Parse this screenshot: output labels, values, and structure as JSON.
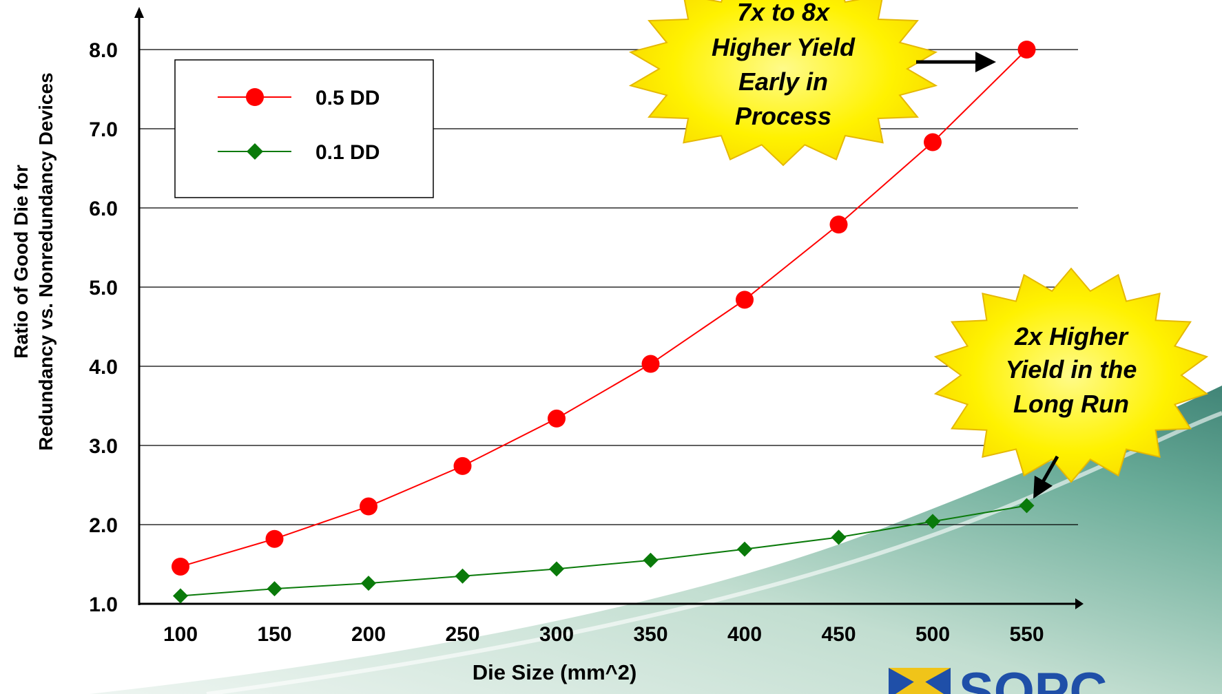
{
  "chart_data": {
    "type": "line",
    "title": "",
    "xlabel": "Die Size (mm^2)",
    "ylabel": [
      "Ratio of Good Die for",
      "Redundancy vs. Nonredundancy Devices"
    ],
    "x": [
      100,
      150,
      200,
      250,
      300,
      350,
      400,
      450,
      500,
      550
    ],
    "x_tick_labels": [
      "100",
      "150",
      "200",
      "250",
      "300",
      "350",
      "400",
      "450",
      "500",
      "550"
    ],
    "y_tick_labels": [
      "1.0",
      "2.0",
      "3.0",
      "4.0",
      "5.0",
      "6.0",
      "7.0",
      "8.0"
    ],
    "ylim": [
      1.0,
      8.0
    ],
    "grid": "horizontal",
    "legend_position": "top-left",
    "series": [
      {
        "name": "0.5 DD",
        "color": "#ff0000",
        "marker": "circle",
        "values": [
          1.47,
          1.82,
          2.23,
          2.74,
          3.34,
          4.03,
          4.84,
          5.79,
          6.83,
          8.0
        ]
      },
      {
        "name": "0.1 DD",
        "color": "#0a7a0a",
        "marker": "diamond",
        "values": [
          1.1,
          1.19,
          1.26,
          1.35,
          1.44,
          1.55,
          1.69,
          1.84,
          2.04,
          2.24
        ]
      }
    ],
    "annotations": [
      {
        "lines": [
          "7x to 8x",
          "Higher Yield",
          "Early in",
          "Process"
        ],
        "points_to": "0.5 DD at 550"
      },
      {
        "lines": [
          "2x Higher",
          "Yield in the",
          "Long Run"
        ],
        "points_to": "0.1 DD at 550"
      }
    ]
  },
  "logo": {
    "text": "SOPC",
    "color": "#1f4fa8",
    "accent": "#f0c419"
  },
  "colors": {
    "burst_fill": "#ffee00",
    "burst_stroke": "#e9b700",
    "swoosh": "#2f8a7a"
  }
}
